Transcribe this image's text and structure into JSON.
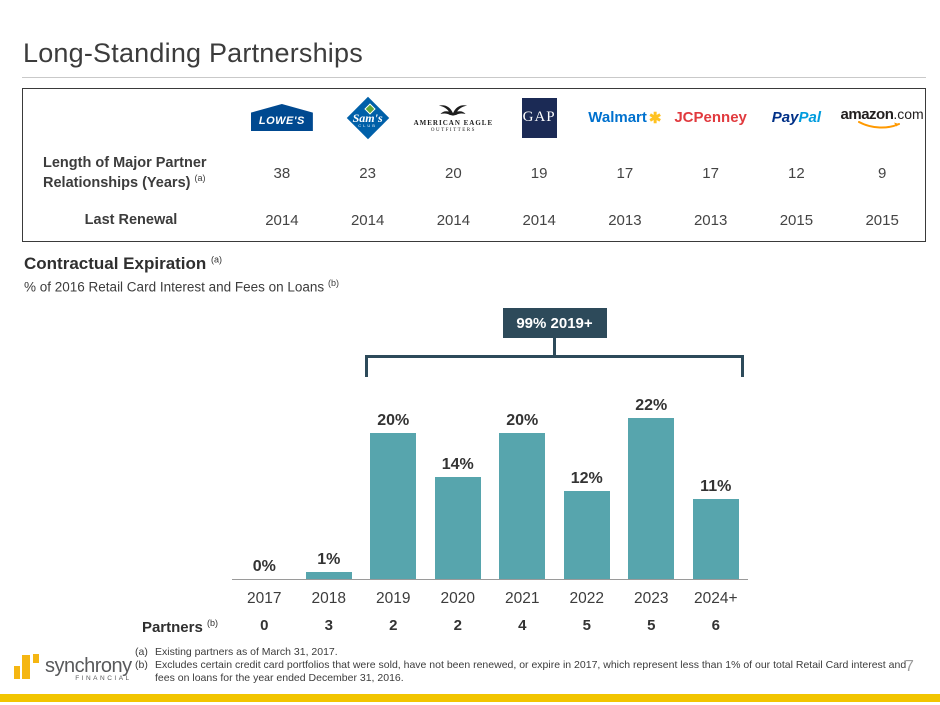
{
  "slide": {
    "title": "Long-Standing Partnerships",
    "page_number": "7",
    "footnotes": [
      {
        "marker": "(a)",
        "text": "Existing partners as of March 31, 2017."
      },
      {
        "marker": "(b)",
        "text": "Excludes certain credit card portfolios that were sold, have not been renewed, or expire in 2017, which represent less than 1% of our total Retail Card interest and fees on loans for the year ended December 31, 2016."
      }
    ],
    "brand_logo": {
      "name": "synchrony",
      "sub": "FINANCIAL"
    }
  },
  "logos": {
    "lowes": "LOWE'S",
    "sams": "Sam's",
    "sams_sub": "CLUB",
    "aeo_line1": "AMERICAN EAGLE",
    "aeo_line2": "OUTFITTERS",
    "gap": "GAP",
    "walmart": "Walmart",
    "walmart_spark": "✱",
    "jcpenney": "JCPenney",
    "paypal_1": "Pay",
    "paypal_2": "Pal",
    "amazon": "amazon",
    "amazon_com": ".com"
  },
  "partner_table": {
    "brands": [
      "Lowe's",
      "Sam's Club",
      "American Eagle Outfitters",
      "GAP",
      "Walmart",
      "JCPenney",
      "PayPal",
      "amazon.com"
    ],
    "years_row": {
      "label": "Length of Major Partner Relationships (Years)",
      "sup": "(a)",
      "values": [
        "38",
        "23",
        "20",
        "19",
        "17",
        "17",
        "12",
        "9"
      ]
    },
    "renewal_row": {
      "label": "Last Renewal",
      "values": [
        "2014",
        "2014",
        "2014",
        "2014",
        "2013",
        "2013",
        "2015",
        "2015"
      ]
    }
  },
  "section": {
    "heading": "Contractual Expiration",
    "heading_sup": "(a)",
    "subheading": "% of 2016 Retail Card Interest and Fees on Loans",
    "subheading_sup": "(b)"
  },
  "chart_data": {
    "type": "bar",
    "title": "Contractual Expiration",
    "subtitle": "% of 2016 Retail Card Interest and Fees on Loans",
    "categories": [
      "2017",
      "2018",
      "2019",
      "2020",
      "2021",
      "2022",
      "2023",
      "2024+"
    ],
    "values": [
      0,
      1,
      20,
      14,
      20,
      12,
      22,
      11
    ],
    "value_labels": [
      "0%",
      "1%",
      "20%",
      "14%",
      "20%",
      "12%",
      "22%",
      "11%"
    ],
    "ylim": [
      0,
      25
    ],
    "grid": false,
    "bar_color": "#57a5ad",
    "annotation": {
      "label": "99% 2019+",
      "from_category": "2019",
      "to_category": "2024+",
      "color": "#2d4a5a"
    },
    "partners_row": {
      "label": "Partners",
      "sup": "(b)",
      "values": [
        "0",
        "3",
        "2",
        "2",
        "4",
        "5",
        "5",
        "6"
      ]
    }
  },
  "colors": {
    "accent_yellow": "#f2c500",
    "bar_teal": "#57a5ad",
    "annotation_navy": "#2d4a5a"
  }
}
